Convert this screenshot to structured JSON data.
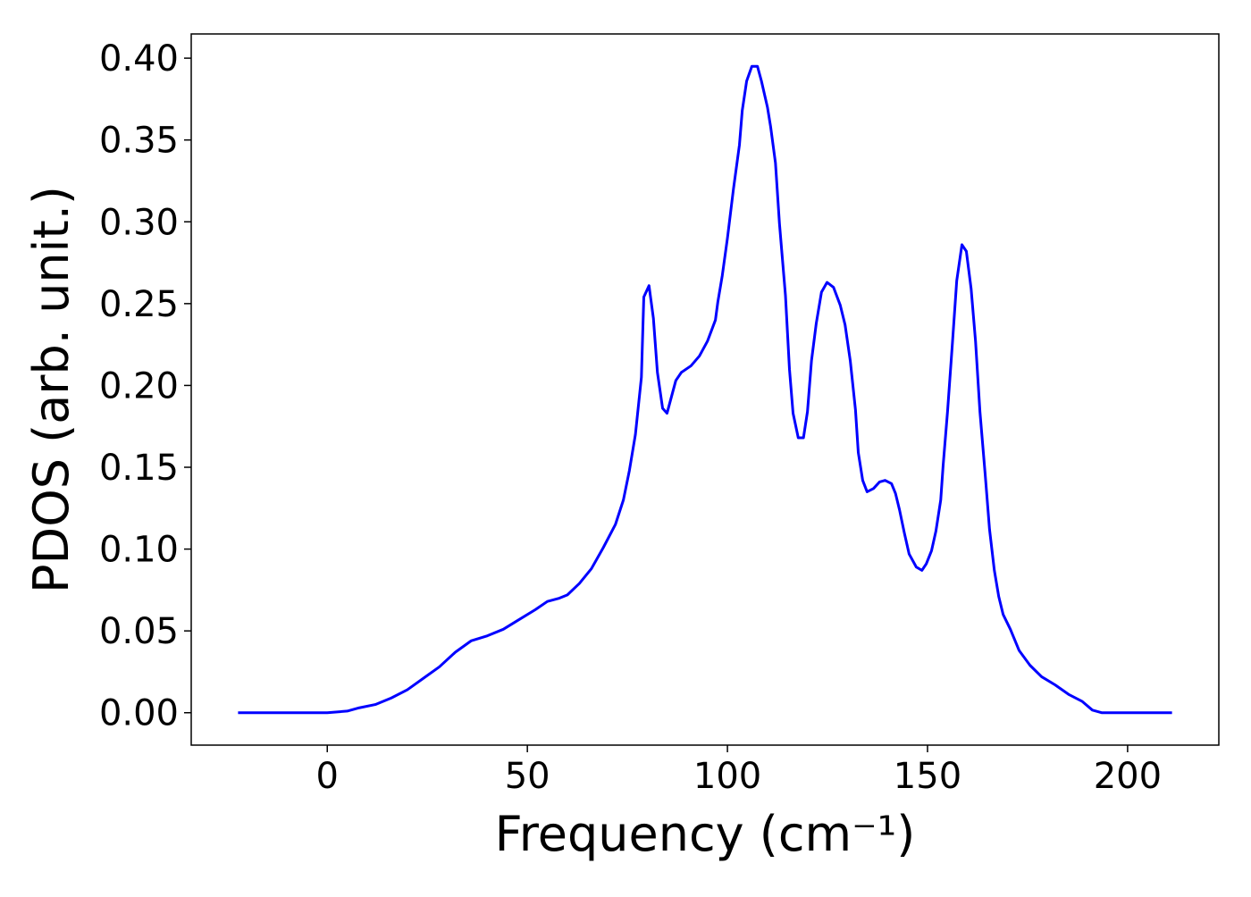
{
  "chart_data": {
    "type": "line",
    "xlabel": "Frequency (cm⁻¹)",
    "ylabel": "PDOS (arb. unit.)",
    "color": "#0000ff",
    "x": [
      -22.3,
      0,
      5,
      8,
      12,
      16,
      20,
      24,
      28,
      32,
      36,
      40,
      44,
      48,
      52,
      55,
      58,
      60,
      63,
      66,
      69,
      72,
      74,
      75.5,
      77,
      78.5,
      79.1,
      80.4,
      81.5,
      82.5,
      83.8,
      84.9,
      87.1,
      88.5,
      90.9,
      93,
      95,
      97,
      97.6,
      98.7,
      100,
      101.5,
      103,
      103.7,
      104.8,
      106.1,
      107.5,
      108.5,
      110,
      110.8,
      112,
      113,
      114.5,
      115.5,
      116.4,
      117.7,
      119,
      120,
      121,
      122.2,
      123.5,
      124.9,
      126.5,
      128.2,
      129.4,
      130.7,
      132,
      132.7,
      133.8,
      134.9,
      136.5,
      138,
      139.4,
      141,
      142,
      143,
      144.2,
      145.4,
      147.2,
      148.6,
      149.7,
      151,
      152.1,
      153.3,
      153.9,
      155,
      156.2,
      157.3,
      158.6,
      159.7,
      160.9,
      162,
      163.1,
      164.4,
      165.5,
      166.7,
      167.8,
      168.9,
      170.7,
      172.9,
      175.6,
      178.5,
      181.9,
      185.4,
      188.6,
      191.2,
      193.5,
      211.1
    ],
    "values": [
      0,
      0,
      0.001,
      0.003,
      0.005,
      0.009,
      0.014,
      0.021,
      0.028,
      0.037,
      0.044,
      0.047,
      0.051,
      0.057,
      0.063,
      0.068,
      0.07,
      0.072,
      0.079,
      0.088,
      0.101,
      0.115,
      0.13,
      0.148,
      0.17,
      0.205,
      0.254,
      0.261,
      0.241,
      0.208,
      0.186,
      0.183,
      0.203,
      0.208,
      0.212,
      0.218,
      0.227,
      0.24,
      0.251,
      0.267,
      0.29,
      0.32,
      0.347,
      0.368,
      0.386,
      0.395,
      0.395,
      0.386,
      0.37,
      0.358,
      0.336,
      0.299,
      0.255,
      0.21,
      0.183,
      0.168,
      0.168,
      0.184,
      0.215,
      0.238,
      0.257,
      0.263,
      0.26,
      0.249,
      0.237,
      0.215,
      0.185,
      0.159,
      0.142,
      0.135,
      0.137,
      0.141,
      0.142,
      0.14,
      0.134,
      0.124,
      0.11,
      0.097,
      0.089,
      0.087,
      0.091,
      0.099,
      0.111,
      0.13,
      0.151,
      0.184,
      0.225,
      0.264,
      0.286,
      0.282,
      0.259,
      0.227,
      0.184,
      0.146,
      0.112,
      0.087,
      0.071,
      0.06,
      0.051,
      0.038,
      0.029,
      0.022,
      0.017,
      0.011,
      0.007,
      0.0016,
      0,
      0
    ],
    "xlim": [
      -34,
      222.8
    ],
    "ylim": [
      -0.0198,
      0.4148
    ],
    "xticks": [
      0,
      50,
      100,
      150,
      200
    ],
    "yticks": [
      {
        "value": 0,
        "label": "0.00"
      },
      0.05,
      {
        "value": 0.1,
        "label": "0.10"
      },
      0.15,
      {
        "value": 0.2,
        "label": "0.20"
      },
      0.25,
      {
        "value": 0.3,
        "label": "0.30"
      },
      0.35,
      {
        "value": 0.4,
        "label": "0.40"
      }
    ],
    "grid": false
  }
}
